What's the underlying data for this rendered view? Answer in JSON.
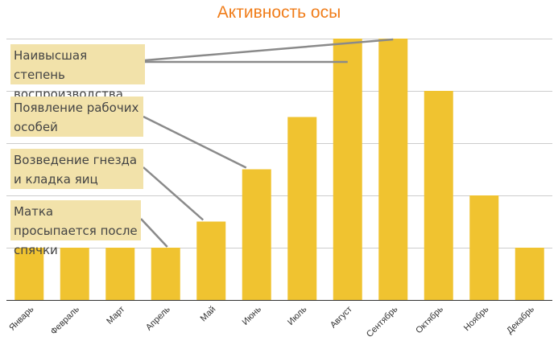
{
  "chart_data": {
    "type": "bar",
    "title": "Активность осы",
    "categories": [
      "Январь",
      "Февраль",
      "Март",
      "Апрель",
      "Май",
      "Июнь",
      "Июль",
      "Август",
      "Сентябрь",
      "Октябрь",
      "Ноябрь",
      "Декабрь"
    ],
    "values": [
      1,
      1,
      1,
      1,
      1.5,
      2.5,
      3.5,
      5,
      5,
      4,
      2,
      1
    ],
    "ylim": [
      0,
      5
    ],
    "grid": true,
    "xlabel": "",
    "ylabel": "",
    "bar_color": "#f0c330",
    "title_color": "#f07d1a",
    "annotations": [
      {
        "text": "Наивысшая степень воспроизводства",
        "targets": [
          "Август",
          "Сентябрь"
        ]
      },
      {
        "text": "Появление рабочих особей",
        "targets": [
          "Июнь"
        ]
      },
      {
        "text": "Возведение гнезда и кладка яиц",
        "targets": [
          "Май"
        ]
      },
      {
        "text": "Матка просыпается после спячки",
        "targets": [
          "Апрель"
        ]
      }
    ]
  }
}
